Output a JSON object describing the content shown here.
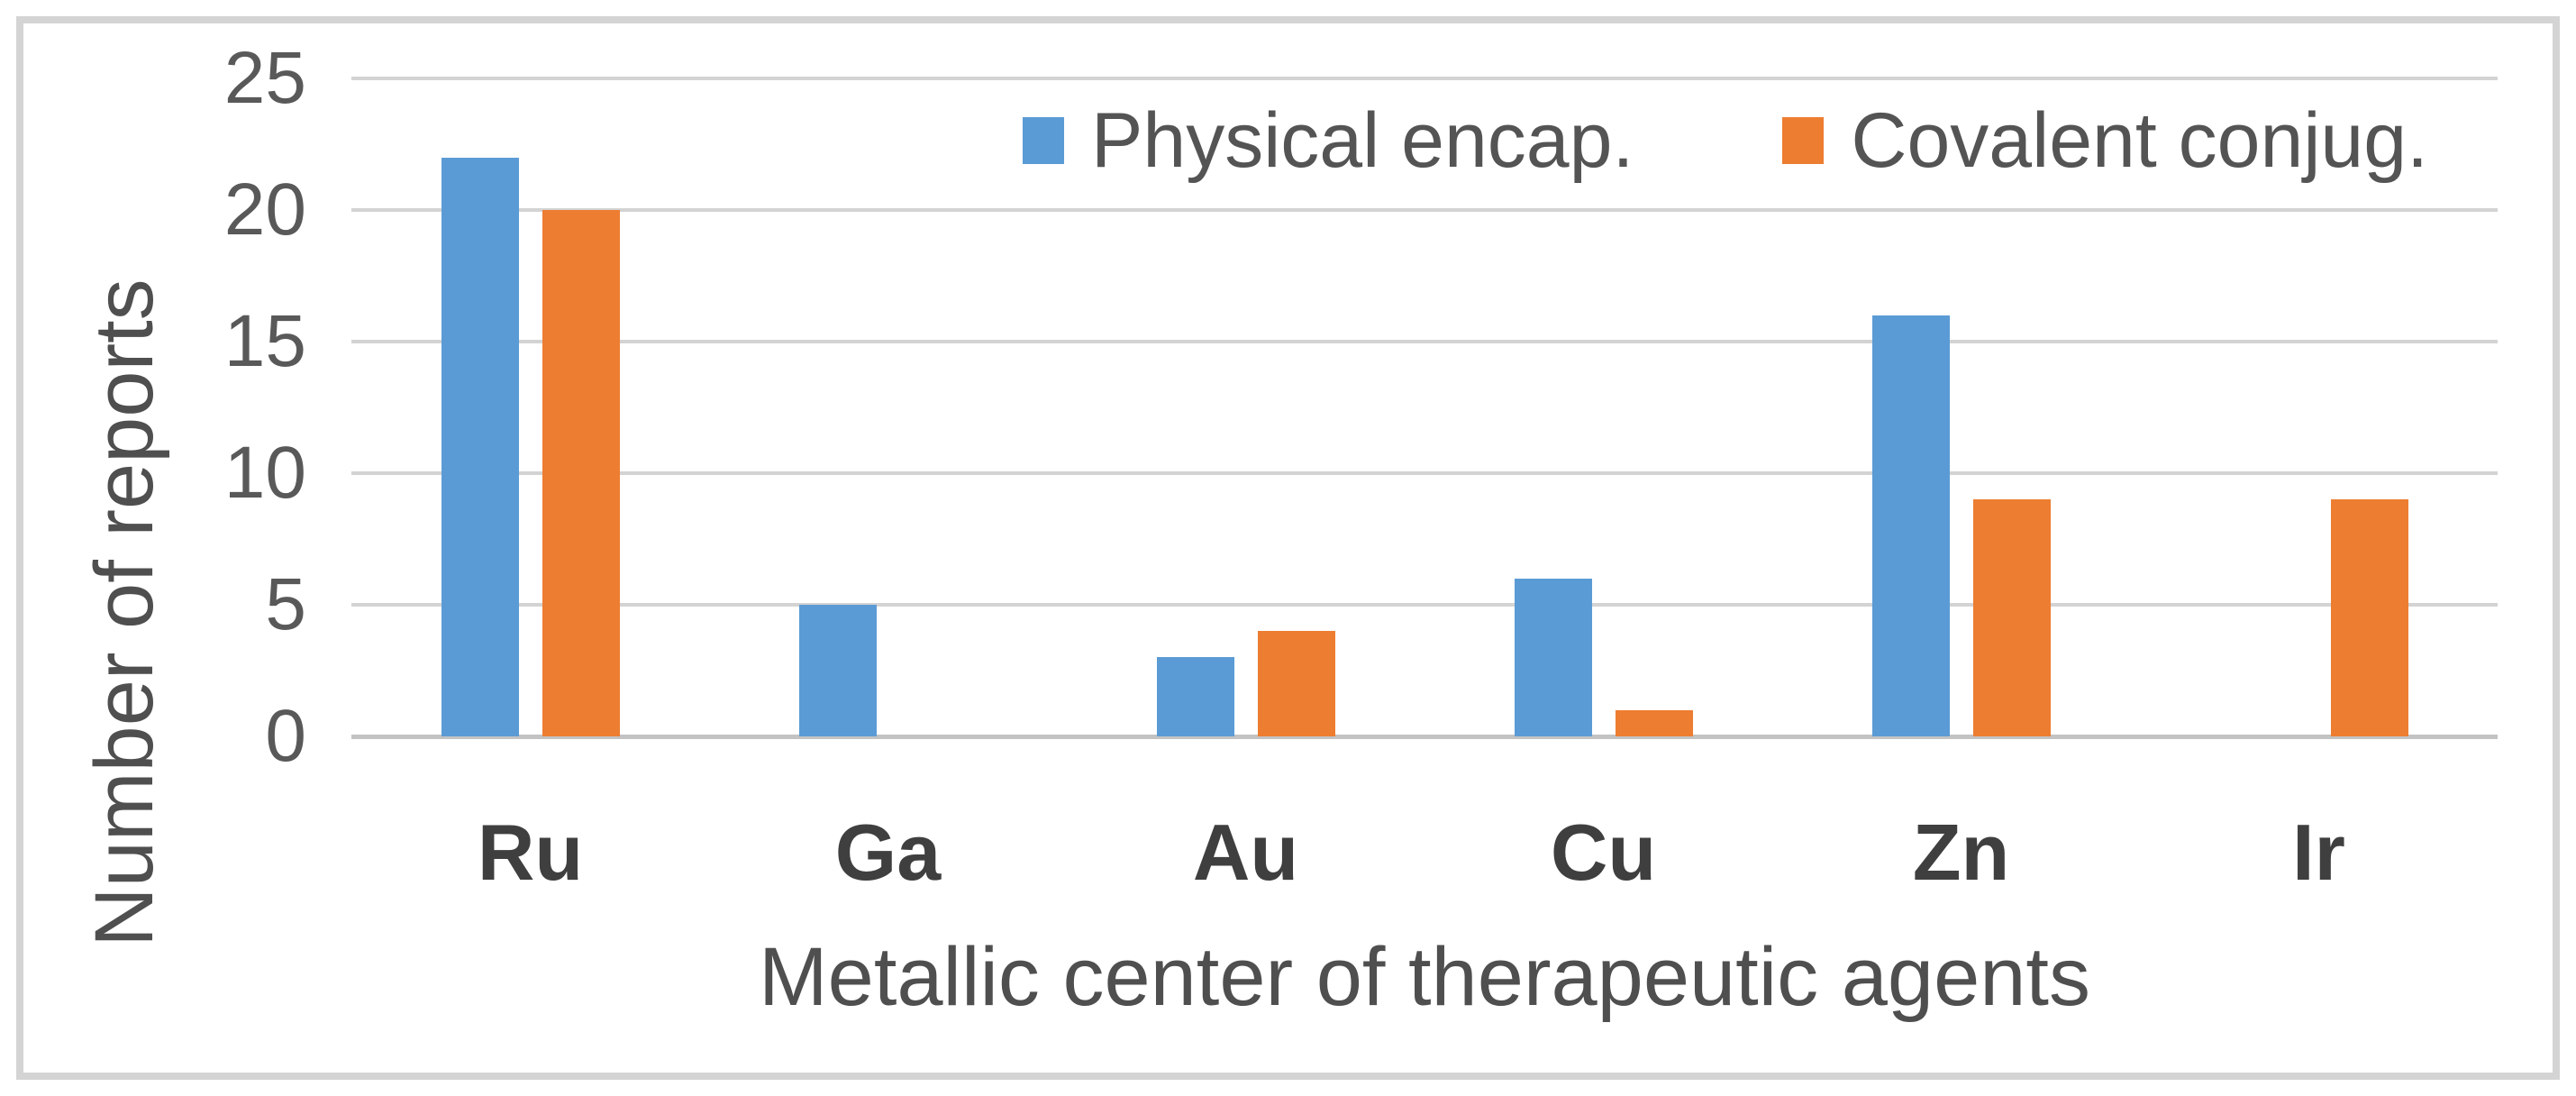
{
  "chart_data": {
    "type": "bar",
    "title": "",
    "categories": [
      "Ru",
      "Ga",
      "Au",
      "Cu",
      "Zn",
      "Ir"
    ],
    "series": [
      {
        "name": "Physical encap.",
        "color": "#5B9BD5",
        "values": [
          22,
          5,
          3,
          6,
          16,
          0
        ]
      },
      {
        "name": "Covalent conjug.",
        "color": "#ED7D31",
        "values": [
          20,
          0,
          4,
          1,
          9,
          9
        ]
      }
    ],
    "xlabel": "Metallic center of therapeutic agents",
    "ylabel": "Number of reports",
    "ylim": [
      0,
      25
    ],
    "yticks": [
      0,
      5,
      10,
      15,
      20,
      25
    ],
    "grid": true,
    "gridline_color": "#d3d3d3",
    "legend_position": "top-right-inside",
    "legend_marker": "square"
  }
}
